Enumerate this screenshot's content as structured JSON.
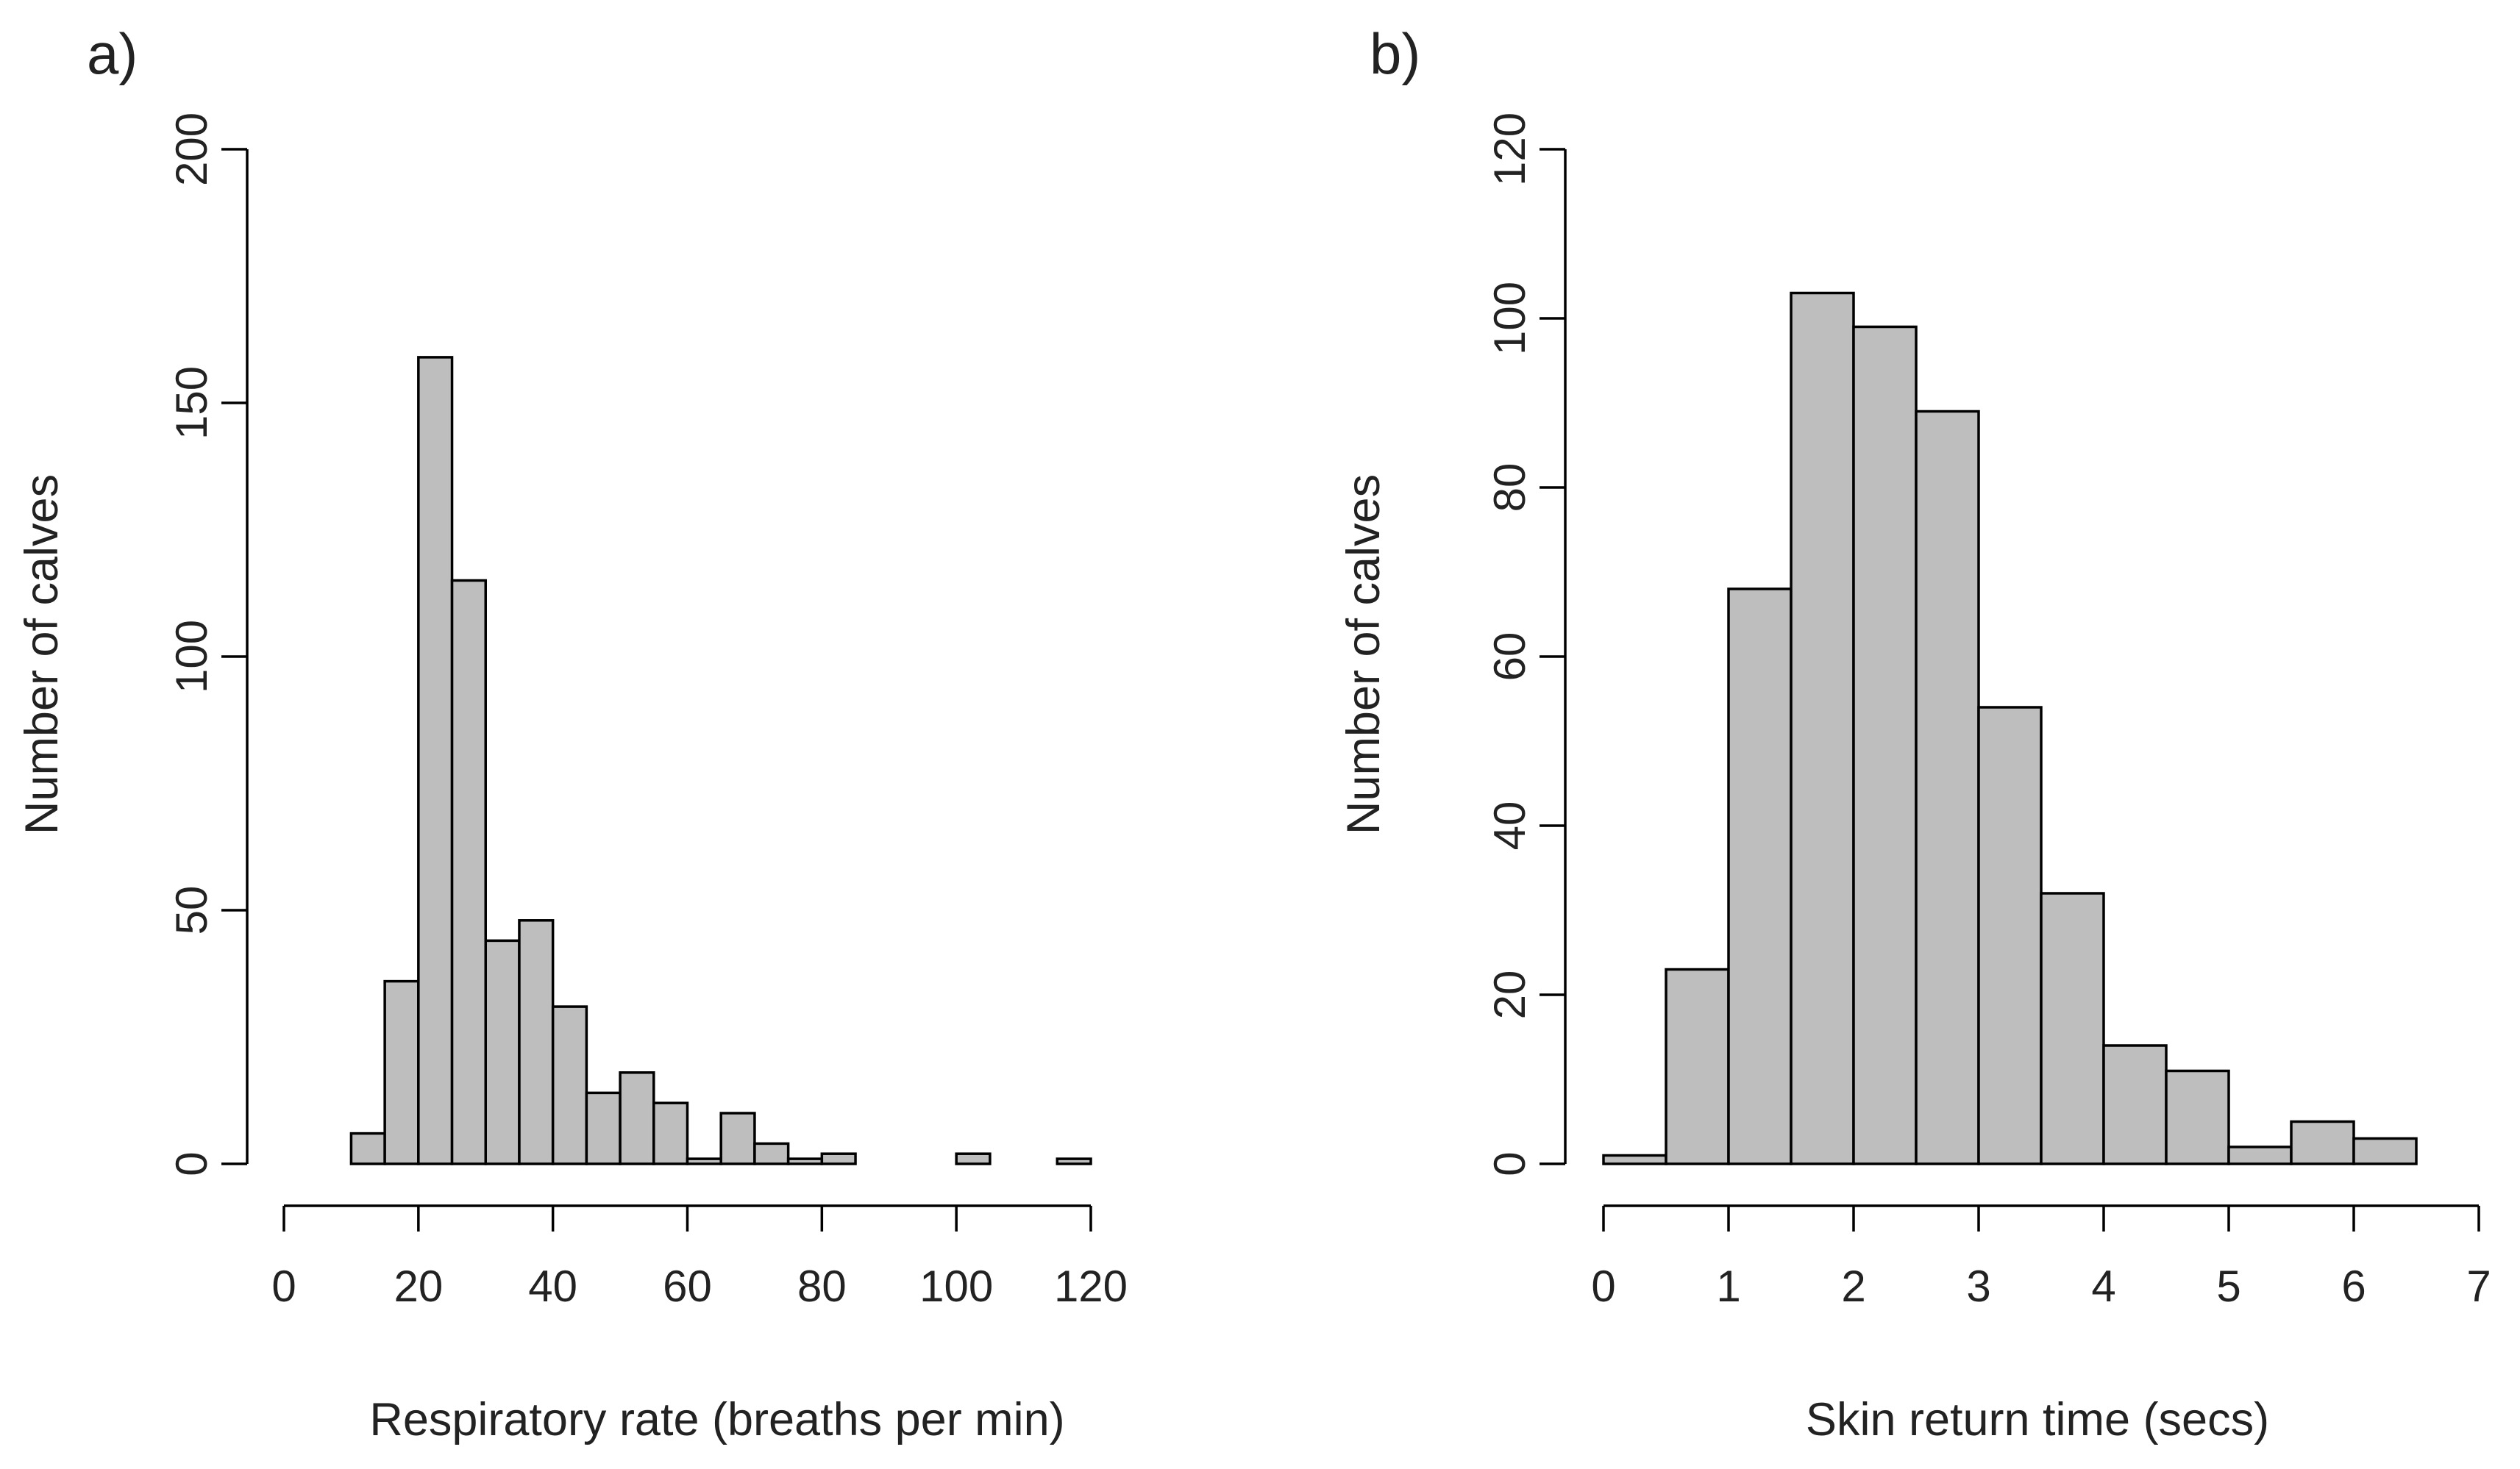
{
  "figure": {
    "panels": [
      "a)",
      "b)"
    ]
  },
  "chart_data": [
    {
      "type": "bar",
      "panel_label": "a)",
      "title": "",
      "xlabel": "Respiratory rate (breaths per min)",
      "ylabel": "Number of calves",
      "bins_start": [
        5,
        10,
        15,
        20,
        25,
        30,
        35,
        40,
        45,
        50,
        55,
        60,
        65,
        70,
        75,
        80,
        85,
        90,
        95,
        100,
        105,
        110,
        115
      ],
      "bin_width": 5,
      "values": [
        0,
        6,
        36,
        159,
        115,
        44,
        48,
        31,
        14,
        18,
        12,
        1,
        10,
        4,
        1,
        2,
        0,
        0,
        0,
        2,
        0,
        0,
        1
      ],
      "xlim": [
        0,
        120
      ],
      "ylim": [
        0,
        200
      ],
      "xticks": [
        0,
        20,
        40,
        60,
        80,
        100,
        120
      ],
      "yticks": [
        0,
        50,
        100,
        150,
        200
      ],
      "grid": false
    },
    {
      "type": "bar",
      "panel_label": "b)",
      "title": "",
      "xlabel": "Skin return time (secs)",
      "ylabel": "Number of calves",
      "bins_start": [
        0,
        0.5,
        1,
        1.5,
        2,
        2.5,
        3,
        3.5,
        4,
        4.5,
        5,
        5.5,
        6
      ],
      "bin_width": 0.5,
      "values": [
        1,
        23,
        68,
        103,
        99,
        89,
        54,
        32,
        14,
        11,
        2,
        5,
        3
      ],
      "xlim": [
        0,
        7
      ],
      "ylim": [
        0,
        120
      ],
      "xticks": [
        0,
        1,
        2,
        3,
        4,
        5,
        6,
        7
      ],
      "yticks": [
        0,
        20,
        40,
        60,
        80,
        100,
        120
      ],
      "grid": false
    }
  ]
}
